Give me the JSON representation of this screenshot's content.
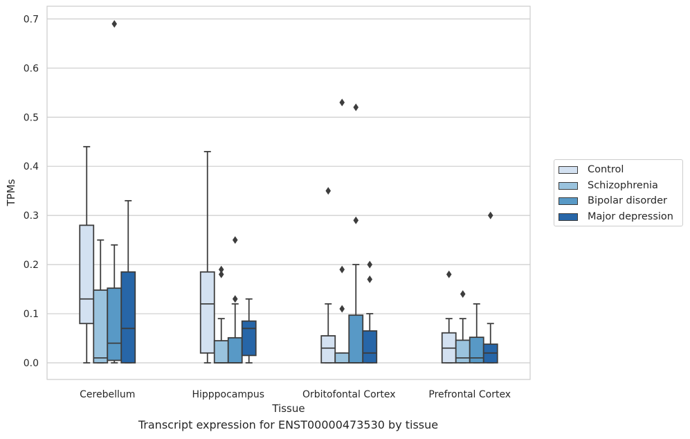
{
  "chart_data": {
    "type": "boxplot",
    "title": "",
    "caption": "Transcript expression for ENST00000473530 by tissue",
    "xlabel": "Tissue",
    "ylabel": "TPMs",
    "ylim": [
      -0.034,
      0.725
    ],
    "yticks": [
      "0.0",
      "0.1",
      "0.2",
      "0.3",
      "0.4",
      "0.5",
      "0.6",
      "0.7"
    ],
    "categories": [
      "Cerebellum",
      "Hipppocampus",
      "Orbitofontal Cortex",
      "Prefrontal Cortex"
    ],
    "grid": true,
    "legend_position": "right",
    "series": [
      {
        "name": "Control",
        "color": "#d3e1f1",
        "boxes": [
          {
            "whislo": 0.0,
            "q1": 0.08,
            "med": 0.13,
            "q3": 0.28,
            "whishi": 0.44,
            "fliers": []
          },
          {
            "whislo": 0.0,
            "q1": 0.02,
            "med": 0.12,
            "q3": 0.185,
            "whishi": 0.43,
            "fliers": []
          },
          {
            "whislo": 0.0,
            "q1": 0.0,
            "med": 0.03,
            "q3": 0.055,
            "whishi": 0.12,
            "fliers": [
              0.35
            ]
          },
          {
            "whislo": 0.0,
            "q1": 0.0,
            "med": 0.03,
            "q3": 0.061,
            "whishi": 0.09,
            "fliers": [
              0.18
            ]
          }
        ]
      },
      {
        "name": "Schizophrenia",
        "color": "#9ac3de",
        "boxes": [
          {
            "whislo": 0.0,
            "q1": 0.0,
            "med": 0.01,
            "q3": 0.148,
            "whishi": 0.25,
            "fliers": []
          },
          {
            "whislo": 0.0,
            "q1": 0.0,
            "med": 0.0,
            "q3": 0.045,
            "whishi": 0.09,
            "fliers": [
              0.18,
              0.19
            ]
          },
          {
            "whislo": 0.0,
            "q1": 0.0,
            "med": 0.0,
            "q3": 0.02,
            "whishi": 0.02,
            "fliers": [
              0.11,
              0.19,
              0.53
            ]
          },
          {
            "whislo": 0.0,
            "q1": 0.0,
            "med": 0.01,
            "q3": 0.046,
            "whishi": 0.09,
            "fliers": [
              0.14
            ]
          }
        ]
      },
      {
        "name": "Bipolar disorder",
        "color": "#5899c6",
        "boxes": [
          {
            "whislo": 0.0,
            "q1": 0.005,
            "med": 0.04,
            "q3": 0.152,
            "whishi": 0.24,
            "fliers": [
              0.69
            ]
          },
          {
            "whislo": 0.0,
            "q1": 0.0,
            "med": 0.0,
            "q3": 0.051,
            "whishi": 0.12,
            "fliers": [
              0.13,
              0.25
            ]
          },
          {
            "whislo": 0.0,
            "q1": 0.0,
            "med": 0.0,
            "q3": 0.097,
            "whishi": 0.2,
            "fliers": [
              0.29,
              0.52
            ]
          },
          {
            "whislo": 0.0,
            "q1": 0.0,
            "med": 0.01,
            "q3": 0.052,
            "whishi": 0.12,
            "fliers": []
          }
        ]
      },
      {
        "name": "Major depression",
        "color": "#2766a8",
        "boxes": [
          {
            "whislo": 0.0,
            "q1": 0.0,
            "med": 0.07,
            "q3": 0.185,
            "whishi": 0.33,
            "fliers": []
          },
          {
            "whislo": 0.0,
            "q1": 0.015,
            "med": 0.07,
            "q3": 0.085,
            "whishi": 0.13,
            "fliers": []
          },
          {
            "whislo": 0.0,
            "q1": 0.0,
            "med": 0.02,
            "q3": 0.065,
            "whishi": 0.1,
            "fliers": [
              0.17,
              0.2
            ]
          },
          {
            "whislo": 0.0,
            "q1": 0.0,
            "med": 0.02,
            "q3": 0.038,
            "whishi": 0.08,
            "fliers": [
              0.3
            ]
          }
        ]
      }
    ]
  }
}
